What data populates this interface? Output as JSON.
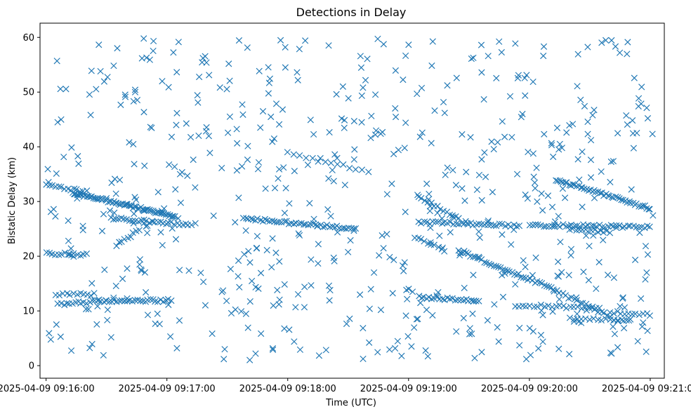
{
  "chart_data": {
    "type": "scatter",
    "title": "Detections in Delay",
    "xlabel": "Time (UTC)",
    "ylabel": "Bistatic Delay (km)",
    "marker": "x",
    "color": "#1f77b4",
    "x_ticks": [
      "2025-04-09 09:16:00",
      "2025-04-09 09:17:00",
      "2025-04-09 09:18:00",
      "2025-04-09 09:19:00",
      "2025-04-09 09:20:00",
      "2025-04-09 09:21:00"
    ],
    "y_ticks": [
      "0",
      "10",
      "20",
      "30",
      "40",
      "50",
      "60"
    ],
    "xlim": [
      "2025-04-09 09:15:57",
      "2025-04-09 09:21:07"
    ],
    "ylim": [
      -2.3,
      62.6
    ],
    "tracks": [
      {
        "t_start": "2025-04-09 09:16:00",
        "t_end": "2025-04-09 09:16:20",
        "y_start": 33.0,
        "y_end": 31.8,
        "count": 14
      },
      {
        "t_start": "2025-04-09 09:16:13",
        "t_end": "2025-04-09 09:17:04",
        "y_start": 31.6,
        "y_end": 27.3,
        "count": 70
      },
      {
        "t_start": "2025-04-09 09:16:32",
        "t_end": "2025-04-09 09:17:12",
        "y_start": 27.0,
        "y_end": 25.7,
        "count": 30
      },
      {
        "t_start": "2025-04-09 09:16:00",
        "t_end": "2025-04-09 09:16:20",
        "y_start": 20.5,
        "y_end": 20.3,
        "count": 14
      },
      {
        "t_start": "2025-04-09 09:16:05",
        "t_end": "2025-04-09 09:16:24",
        "y_start": 13.0,
        "y_end": 13.0,
        "count": 12
      },
      {
        "t_start": "2025-04-09 09:16:06",
        "t_end": "2025-04-09 09:16:30",
        "y_start": 11.2,
        "y_end": 11.9,
        "count": 18
      },
      {
        "t_start": "2025-04-09 09:16:30",
        "t_end": "2025-04-09 09:17:02",
        "y_start": 11.9,
        "y_end": 11.9,
        "count": 26
      },
      {
        "t_start": "2025-04-09 09:16:35",
        "t_end": "2025-04-09 09:16:46",
        "y_start": 22.0,
        "y_end": 24.8,
        "count": 9
      },
      {
        "t_start": "2025-04-09 09:17:38",
        "t_end": "2025-04-09 09:18:34",
        "y_start": 26.9,
        "y_end": 25.0,
        "count": 48
      },
      {
        "t_start": "2025-04-09 09:18:00",
        "t_end": "2025-04-09 09:18:40",
        "y_start": 38.8,
        "y_end": 35.5,
        "count": 14
      },
      {
        "t_start": "2025-04-09 09:19:05",
        "t_end": "2025-04-09 09:19:55",
        "y_start": 26.2,
        "y_end": 25.6,
        "count": 36
      },
      {
        "t_start": "2025-04-09 09:19:05",
        "t_end": "2025-04-09 09:19:25",
        "y_start": 31.0,
        "y_end": 26.7,
        "count": 14
      },
      {
        "t_start": "2025-04-09 09:19:25",
        "t_end": "2025-04-09 09:20:12",
        "y_start": 21.0,
        "y_end": 14.0,
        "count": 42
      },
      {
        "t_start": "2025-04-09 09:20:12",
        "t_end": "2025-04-09 09:20:40",
        "y_start": 13.8,
        "y_end": 9.0,
        "count": 20
      },
      {
        "t_start": "2025-04-09 09:19:05",
        "t_end": "2025-04-09 09:19:35",
        "y_start": 12.5,
        "y_end": 11.8,
        "count": 24
      },
      {
        "t_start": "2025-04-09 09:19:03",
        "t_end": "2025-04-09 09:19:18",
        "y_start": 23.6,
        "y_end": 21.0,
        "count": 10
      },
      {
        "t_start": "2025-04-09 09:19:53",
        "t_end": "2025-04-09 09:20:35",
        "y_start": 11.0,
        "y_end": 10.6,
        "count": 24
      },
      {
        "t_start": "2025-04-09 09:20:00",
        "t_end": "2025-04-09 09:21:00",
        "y_start": 25.7,
        "y_end": 25.4,
        "count": 44
      },
      {
        "t_start": "2025-04-09 09:20:13",
        "t_end": "2025-04-09 09:21:00",
        "y_start": 34.0,
        "y_end": 28.7,
        "count": 50
      },
      {
        "t_start": "2025-04-09 09:20:20",
        "t_end": "2025-04-09 09:20:40",
        "y_start": 24.8,
        "y_end": 24.5,
        "count": 14
      },
      {
        "t_start": "2025-04-09 09:20:20",
        "t_end": "2025-04-09 09:20:50",
        "y_start": 8.5,
        "y_end": 8.3,
        "count": 16
      },
      {
        "t_start": "2025-04-09 09:20:40",
        "t_end": "2025-04-09 09:21:00",
        "y_start": 9.8,
        "y_end": 9.3,
        "count": 12
      }
    ],
    "clutter": {
      "t_start": "2025-04-09 09:16:00",
      "t_end": "2025-04-09 09:21:02",
      "y_range": [
        1,
        60
      ],
      "count": 620
    },
    "grid": false,
    "legend": "none"
  }
}
